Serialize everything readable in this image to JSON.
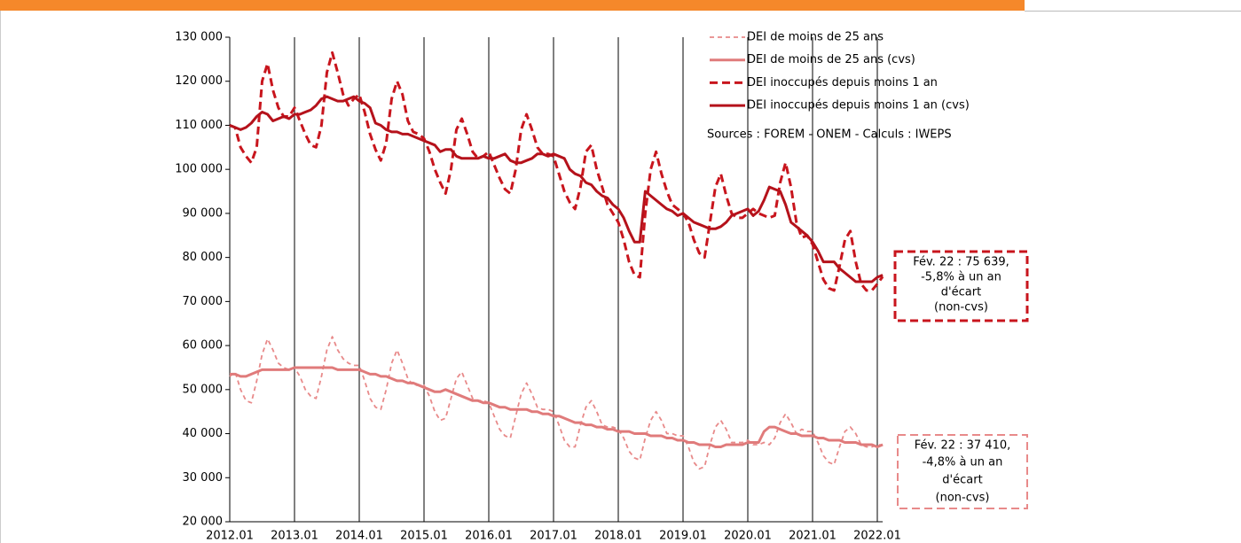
{
  "chart_data": {
    "type": "line",
    "categories": [
      "2012.01",
      null,
      null,
      null,
      null,
      null,
      null,
      null,
      null,
      null,
      null,
      null,
      "2013.01",
      null,
      null,
      null,
      null,
      null,
      null,
      null,
      null,
      null,
      null,
      null,
      "2014.01",
      null,
      null,
      null,
      null,
      null,
      null,
      null,
      null,
      null,
      null,
      null,
      "2015.01",
      null,
      null,
      null,
      null,
      null,
      null,
      null,
      null,
      null,
      null,
      null,
      "2016.01",
      null,
      null,
      null,
      null,
      null,
      null,
      null,
      null,
      null,
      null,
      null,
      "2017.01",
      null,
      null,
      null,
      null,
      null,
      null,
      null,
      null,
      null,
      null,
      null,
      "2018.01",
      null,
      null,
      null,
      null,
      null,
      null,
      null,
      null,
      null,
      null,
      null,
      "2019.01",
      null,
      null,
      null,
      null,
      null,
      null,
      null,
      null,
      null,
      null,
      null,
      "2020.01",
      null,
      null,
      null,
      null,
      null,
      null,
      null,
      null,
      null,
      null,
      null,
      "2021.01",
      null,
      null,
      null,
      null,
      null,
      null,
      null,
      null,
      null,
      null,
      null,
      "2022.01",
      null
    ],
    "series": [
      {
        "name": "DEI de moins de 25 ans",
        "color": "#e88a8a",
        "dash": true,
        "values": [
          53000,
          54000,
          50000,
          47500,
          47000,
          52000,
          58000,
          61500,
          59000,
          56000,
          55000,
          54500,
          55000,
          53000,
          50000,
          48500,
          48000,
          53000,
          59000,
          62000,
          59000,
          57000,
          56000,
          55500,
          55500,
          52000,
          48000,
          46000,
          45500,
          50000,
          56000,
          59000,
          56000,
          52500,
          51000,
          51000,
          51000,
          48500,
          45000,
          43000,
          43500,
          48000,
          52500,
          54000,
          51000,
          48000,
          47500,
          47500,
          47000,
          44000,
          41000,
          39500,
          39000,
          44000,
          49000,
          51500,
          49000,
          46000,
          45500,
          45500,
          45000,
          42000,
          38500,
          37000,
          37000,
          42000,
          46000,
          47500,
          45000,
          42000,
          41500,
          41500,
          41000,
          39000,
          36000,
          34500,
          34000,
          39000,
          43000,
          45000,
          43000,
          40000,
          40000,
          39500,
          39500,
          37000,
          33500,
          32000,
          32500,
          37500,
          41500,
          43000,
          41000,
          38000,
          38000,
          38000,
          38500,
          37500,
          37500,
          38000,
          37500,
          39000,
          42500,
          44500,
          42500,
          40000,
          41000,
          40500,
          40500,
          38000,
          35000,
          33500,
          33000,
          37000,
          40500,
          41500,
          40000,
          37500,
          37000,
          37000,
          37500,
          37410
        ]
      },
      {
        "name": "DEI de moins de 25 ans (cvs)",
        "color": "#e07b7b",
        "dash": false,
        "values": [
          53500,
          53500,
          53000,
          53000,
          53500,
          54000,
          54500,
          54500,
          54500,
          54500,
          54500,
          54500,
          55000,
          55000,
          55000,
          55000,
          55000,
          55000,
          55000,
          55000,
          54500,
          54500,
          54500,
          54500,
          54500,
          54000,
          53500,
          53500,
          53000,
          53000,
          52500,
          52000,
          52000,
          51500,
          51500,
          51000,
          50500,
          50000,
          49500,
          49500,
          50000,
          49500,
          49000,
          48500,
          48000,
          47500,
          47500,
          47000,
          47000,
          46500,
          46000,
          46000,
          45500,
          45500,
          45500,
          45500,
          45000,
          45000,
          44500,
          44500,
          44000,
          44000,
          43500,
          43000,
          42500,
          42500,
          42000,
          42000,
          41500,
          41500,
          41000,
          41000,
          40500,
          40500,
          40500,
          40000,
          40000,
          40000,
          39500,
          39500,
          39500,
          39000,
          39000,
          38500,
          38500,
          38000,
          38000,
          37500,
          37500,
          37500,
          37000,
          37000,
          37500,
          37500,
          37500,
          37500,
          38000,
          38000,
          38000,
          40500,
          41500,
          41500,
          41000,
          40500,
          40000,
          40000,
          39500,
          39500,
          39500,
          39000,
          39000,
          38500,
          38500,
          38500,
          38000,
          38000,
          38000,
          37500,
          37500,
          37500,
          37000,
          37500
        ]
      },
      {
        "name": "DEI inoccupés depuis moins 1 an",
        "color": "#c8151d",
        "dash": true,
        "values": [
          110000,
          109500,
          105000,
          103000,
          101500,
          105000,
          120000,
          124000,
          118000,
          114000,
          112000,
          112000,
          114000,
          111000,
          108000,
          105500,
          105000,
          110000,
          122000,
          126500,
          122000,
          117000,
          114500,
          116000,
          117000,
          113000,
          108000,
          104500,
          102000,
          106000,
          116000,
          120000,
          117000,
          111000,
          108500,
          108000,
          107000,
          104000,
          100000,
          97000,
          94500,
          100000,
          109000,
          111500,
          108000,
          104000,
          102500,
          103000,
          104000,
          101000,
          98000,
          95500,
          94500,
          100000,
          109000,
          112500,
          109000,
          105000,
          103500,
          103500,
          103000,
          99000,
          95000,
          92500,
          91000,
          96000,
          104000,
          105500,
          100000,
          96000,
          92000,
          90000,
          88000,
          84000,
          79000,
          76000,
          75500,
          90000,
          100000,
          104000,
          99000,
          95000,
          92000,
          91000,
          90000,
          88000,
          84000,
          81000,
          80000,
          88000,
          96000,
          99000,
          94000,
          90000,
          89000,
          89000,
          90000,
          91000,
          90000,
          89500,
          89000,
          89500,
          97000,
          101500,
          96000,
          88000,
          84500,
          85000,
          83000,
          79000,
          75000,
          73000,
          72500,
          78000,
          84000,
          86000,
          79000,
          74000,
          72500,
          72500,
          74000,
          75639
        ]
      },
      {
        "name": "DEI  inoccupés depuis  moins 1 an (cvs)",
        "color": "#b5121b",
        "dash": false,
        "values": [
          110000,
          109500,
          109000,
          109500,
          110500,
          112000,
          113000,
          112500,
          111000,
          111500,
          112000,
          111500,
          112500,
          112500,
          113000,
          113500,
          114500,
          116000,
          116500,
          116000,
          115500,
          115500,
          116000,
          116500,
          115500,
          115000,
          114000,
          110500,
          110000,
          109000,
          108500,
          108500,
          108000,
          108000,
          107500,
          107000,
          106500,
          106000,
          105500,
          104000,
          104500,
          104500,
          103000,
          102500,
          102500,
          102500,
          102500,
          103000,
          102500,
          102500,
          103000,
          103500,
          102000,
          101500,
          101500,
          102000,
          102500,
          103500,
          103500,
          103000,
          103500,
          103000,
          102500,
          100000,
          99000,
          98500,
          97000,
          96500,
          95000,
          94000,
          93500,
          92000,
          91000,
          89000,
          86000,
          83500,
          83500,
          95000,
          94000,
          93000,
          92000,
          91000,
          90500,
          89500,
          90000,
          89000,
          88000,
          87500,
          87000,
          86500,
          86500,
          87000,
          88000,
          89500,
          90000,
          90500,
          91000,
          89500,
          90500,
          93000,
          96000,
          95500,
          95000,
          92000,
          88000,
          87000,
          86000,
          85000,
          83500,
          81500,
          79000,
          79000,
          79000,
          77500,
          76500,
          75500,
          74500,
          74500,
          74500,
          74500,
          75500,
          76000
        ]
      }
    ],
    "ylim": [
      20000,
      130000
    ],
    "yticks": [
      {
        "value": 20000,
        "label": "20 000"
      },
      {
        "value": 30000,
        "label": "30 000"
      },
      {
        "value": 40000,
        "label": "40 000"
      },
      {
        "value": 50000,
        "label": "50 000"
      },
      {
        "value": 60000,
        "label": "60 000"
      },
      {
        "value": 70000,
        "label": "70 000"
      },
      {
        "value": 80000,
        "label": "80 000"
      },
      {
        "value": 90000,
        "label": "90 000"
      },
      {
        "value": 100000,
        "label": "100 000"
      },
      {
        "value": 110000,
        "label": "110 000"
      },
      {
        "value": 120000,
        "label": "120 000"
      },
      {
        "value": 130000,
        "label": "130 000"
      }
    ],
    "source": "Sources : FOREM - ONEM - Calculs : IWEPS",
    "annotations": [
      {
        "lines": [
          "Fév. 22 :  75 639,",
          "-5,8% à un an",
          "d'écart",
          "(non-cvs)"
        ],
        "color": "#c8151d"
      },
      {
        "lines": [
          "Fév. 22 : 37 410,",
          "-4,8% à un an",
          "d'écart",
          "(non-cvs)"
        ],
        "color": "#e88a8a"
      }
    ],
    "x_grid": true
  }
}
